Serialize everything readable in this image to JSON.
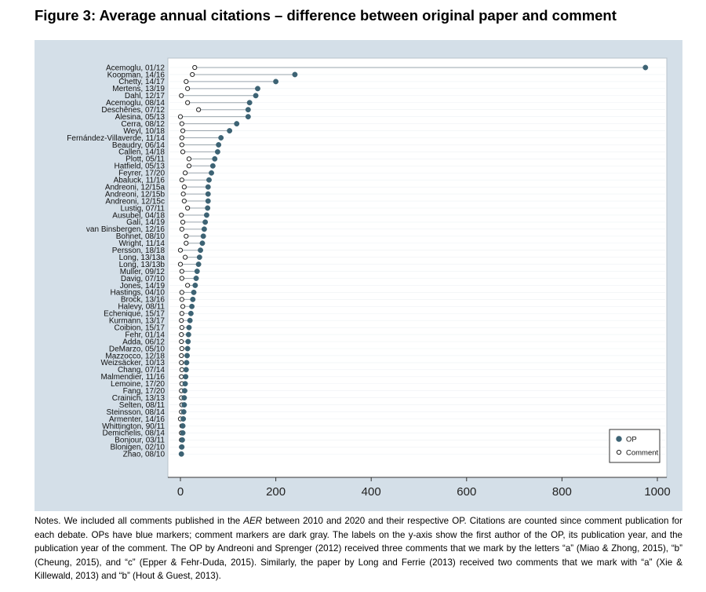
{
  "figure_title": "Figure 3: Average annual citations – difference between original paper and comment",
  "notes": {
    "part1": "Notes. We included all comments published in the ",
    "journal": "AER",
    "part2": " between 2010 and 2020 and their respective OP. Citations are counted since comment publication for each debate. OPs have blue markers; comment markers are dark gray. The labels on the y-axis show the first author of the OP, its publication year, and the publication year of the comment. The OP by Andreoni and Sprenger (2012) received three comments that we mark by the letters “a” (Miao & Zhong, 2015), “b” (Cheung, 2015), and “c” (Epper & Fehr-Duda, 2015). Similarly, the paper by Long and Ferrie (2013) received two comments that we mark with “a” (Xie & Killewald, 2013) and “b” (Hout & Guest, 2013)."
  },
  "colors": {
    "panel_bg": "#d4dfe8",
    "op": "#3d6374",
    "comment": "#ffffff",
    "line": "#9aa5ad"
  },
  "chart_data": {
    "type": "scatter",
    "style": "dumbbell / lollipop, horizontal",
    "title": "",
    "xlabel": "",
    "ylabel": "",
    "xlim": [
      0,
      1000
    ],
    "xticks": [
      0,
      200,
      400,
      600,
      800,
      1000
    ],
    "grid": "horizontal lines at each category",
    "legend_position": "bottom-right",
    "series": [
      {
        "name": "OP",
        "marker": "filled circle",
        "color": "#3d6374"
      },
      {
        "name": "Comment",
        "marker": "hollow circle",
        "color": "#ffffff"
      }
    ],
    "categories": [
      "Acemoglu, 01/12",
      "Koopman, 14/16",
      "Chetty, 14/17",
      "Mertens, 13/19",
      "Dahl, 12/17",
      "Acemoglu, 08/14",
      "Deschênes, 07/12",
      "Alesina, 05/13",
      "Cerra, 08/12",
      "Weyl, 10/18",
      "Fernández-Villaverde, 11/14",
      "Beaudry, 06/14",
      "Callen, 14/18",
      "Plott, 05/11",
      "Hatfield, 05/13",
      "Feyrer, 17/20",
      "Abaluck, 11/16",
      "Andreoni, 12/15a",
      "Andreoni, 12/15b",
      "Andreoni, 12/15c",
      "Lustig, 07/11",
      "Ausubel, 04/18",
      "Galí, 14/19",
      "van Binsbergen, 12/16",
      "Bohnet, 08/10",
      "Wright, 11/14",
      "Persson, 18/18",
      "Long, 13/13a",
      "Long, 13/13b",
      "Muller, 09/12",
      "Davig, 07/10",
      "Jones, 14/19",
      "Hastings, 04/10",
      "Brock, 13/16",
      "Halevy, 08/11",
      "Echenique, 15/17",
      "Kurmann, 13/17",
      "Coibion, 15/17",
      "Fehr, 01/14",
      "Adda, 06/12",
      "DeMarzo, 05/10",
      "Mazzocco, 12/18",
      "Weizsäcker, 10/13",
      "Chang, 07/14",
      "Malmendier, 11/16",
      "Lemoine, 17/20",
      "Fang, 17/20",
      "Crainich, 13/13",
      "Selten, 08/11",
      "Steinsson, 08/14",
      "Armenter, 14/16",
      "Whittington, 90/11",
      "Demichelis, 08/14",
      "Bonjour, 03/11",
      "Blonigen, 02/10",
      "Zhao, 08/10"
    ],
    "op_values": [
      975,
      240,
      200,
      162,
      158,
      145,
      142,
      142,
      118,
      103,
      85,
      80,
      78,
      72,
      68,
      65,
      60,
      58,
      58,
      58,
      57,
      55,
      52,
      50,
      48,
      46,
      42,
      40,
      38,
      35,
      33,
      31,
      28,
      26,
      24,
      22,
      20,
      18,
      17,
      16,
      15,
      14,
      13,
      12,
      11,
      10,
      9,
      8,
      8,
      7,
      6,
      5,
      5,
      4,
      3,
      2
    ],
    "comment_values": [
      30,
      25,
      12,
      15,
      2,
      15,
      38,
      0,
      3,
      5,
      3,
      3,
      5,
      18,
      18,
      10,
      3,
      8,
      6,
      8,
      15,
      2,
      5,
      3,
      12,
      12,
      0,
      10,
      0,
      3,
      3,
      15,
      3,
      3,
      5,
      3,
      2,
      3,
      2,
      2,
      3,
      2,
      2,
      3,
      2,
      3,
      2,
      2,
      3,
      2,
      0,
      3,
      2,
      2,
      2,
      2
    ],
    "legend": [
      "OP",
      "Comment"
    ]
  }
}
